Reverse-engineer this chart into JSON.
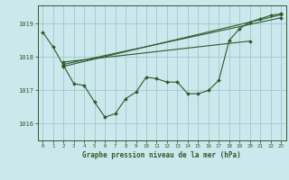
{
  "bg_color": "#cce8ec",
  "grid_color": "#9dc8d0",
  "line_color": "#2d5a2d",
  "xlabel": "Graphe pression niveau de la mer (hPa)",
  "ylim": [
    1015.5,
    1019.55
  ],
  "xlim": [
    -0.5,
    23.5
  ],
  "yticks": [
    1016,
    1017,
    1018,
    1019
  ],
  "xticks": [
    0,
    1,
    2,
    3,
    4,
    5,
    6,
    7,
    8,
    9,
    10,
    11,
    12,
    13,
    14,
    15,
    16,
    17,
    18,
    19,
    20,
    21,
    22,
    23
  ],
  "hours": [
    0,
    1,
    2,
    3,
    4,
    5,
    6,
    7,
    8,
    9,
    10,
    11,
    12,
    13,
    14,
    15,
    16,
    17,
    18,
    19,
    20,
    21,
    22,
    23
  ],
  "pressure_main": [
    1018.75,
    1018.3,
    1017.75,
    1017.2,
    1017.15,
    1016.65,
    1016.2,
    1016.3,
    1016.75,
    1016.95,
    1017.4,
    1017.35,
    1017.25,
    1017.25,
    1016.9,
    1016.9,
    1017.0,
    1017.3,
    1018.5,
    1018.85,
    1019.05,
    1019.15,
    1019.25,
    1019.3
  ],
  "trend_line1_x": [
    2,
    23
  ],
  "trend_line1_y": [
    1017.72,
    1019.27
  ],
  "trend_line2_x": [
    2,
    23
  ],
  "trend_line2_y": [
    1017.78,
    1019.18
  ],
  "trend_line3_x": [
    2,
    20
  ],
  "trend_line3_y": [
    1017.85,
    1018.48
  ]
}
